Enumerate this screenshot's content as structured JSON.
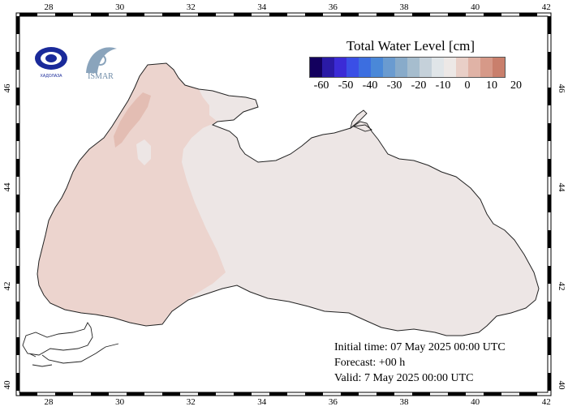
{
  "map": {
    "lon_ticks": [
      "28",
      "30",
      "32",
      "34",
      "36",
      "38",
      "40",
      "42"
    ],
    "lat_ticks": [
      "46",
      "44",
      "42",
      "40"
    ]
  },
  "legend": {
    "title": "Total Water Level [cm]",
    "tick_labels": [
      "-60",
      "-50",
      "-40",
      "-30",
      "-20",
      "-10",
      "0",
      "10",
      "20"
    ],
    "colors": [
      "#13005e",
      "#2a1aa6",
      "#3b2bd6",
      "#3a4fe6",
      "#3c6ee0",
      "#4a88d8",
      "#6a9bd0",
      "#88abca",
      "#a6bdce",
      "#c5d1da",
      "#e0e5e8",
      "#ede8e6",
      "#e9cfc7",
      "#e0b3a6",
      "#d69988",
      "#c97f6c"
    ]
  },
  "info": {
    "initial_time": "Initial time: 07 May 2025 00:00 UTC",
    "forecast": "Forecast: +00 h",
    "valid": "Valid:  7 May 2025 00:00 UTC"
  },
  "logos": {
    "left_logo_text": "ХАДОЛАЗА",
    "right_logo_text": "ISMAR"
  },
  "colors": {
    "sea_neutral": "#ede6e5",
    "sea_positive": "#ecd4ce",
    "sea_peak": "#e3bdb3",
    "land": "#ffffff",
    "coastline": "#222222"
  }
}
